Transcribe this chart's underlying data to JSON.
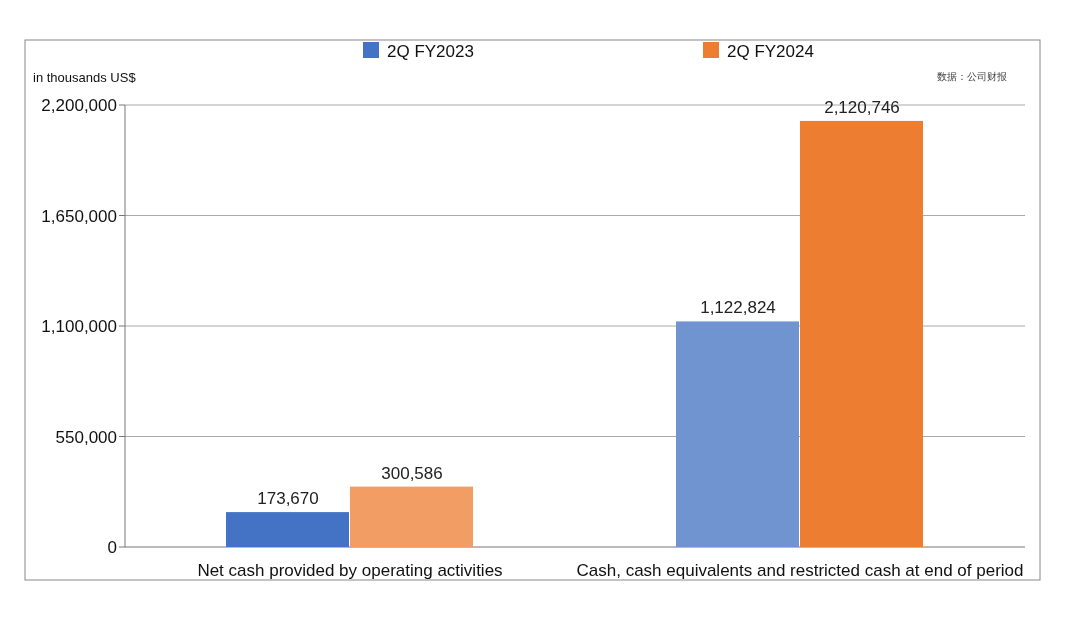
{
  "chart_data": {
    "type": "bar",
    "ylabel": "in thousands US$",
    "categories": [
      "Net cash provided by operating activities",
      "Cash, cash equivalents and restricted cash at end of period"
    ],
    "series": [
      {
        "name": "2Q FY2023",
        "color": "#4472c4",
        "colors": [
          "#4472c4",
          "#7094d0"
        ],
        "values": [
          173670,
          1122824
        ],
        "value_labels": [
          "173,670",
          "1,122,824"
        ]
      },
      {
        "name": "2Q FY2024",
        "color": "#ed7d31",
        "colors": [
          "#f19d63",
          "#ed7d31"
        ],
        "values": [
          300586,
          2120746
        ],
        "value_labels": [
          "300,586",
          "2,120,746"
        ]
      }
    ],
    "ylim": [
      0,
      2200000
    ],
    "yticks": [
      0,
      {
        "value": 550000,
        "label": "550,000"
      },
      {
        "value": 1100000,
        "label": "1,100,000"
      },
      {
        "value": 1650000,
        "label": "1,650,000"
      },
      {
        "value": 2200000,
        "label": "2,200,000"
      }
    ],
    "grid": "y",
    "legend": "top",
    "annotations": [
      "数据：公司财报"
    ]
  }
}
